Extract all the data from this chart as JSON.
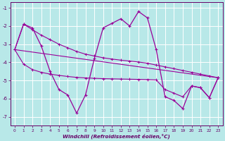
{
  "xlabel": "Windchill (Refroidissement éolien,°C)",
  "x": [
    0,
    1,
    2,
    3,
    4,
    5,
    6,
    7,
    8,
    9,
    10,
    11,
    12,
    13,
    14,
    15,
    16,
    17,
    18,
    19,
    20,
    21,
    22,
    23
  ],
  "main_line": [
    -3.3,
    -1.9,
    -2.1,
    -3.1,
    -4.5,
    -5.5,
    -5.8,
    -6.8,
    -5.8,
    -3.8,
    -2.1,
    -1.85,
    -1.6,
    -2.0,
    -1.2,
    -1.55,
    -3.3,
    -5.9,
    -6.1,
    -6.55,
    -5.3,
    -5.4,
    -5.95,
    -4.85
  ],
  "upper_line": [
    -3.3,
    -1.9,
    -2.2,
    -2.5,
    -2.75,
    -3.0,
    -3.2,
    -3.4,
    -3.55,
    -3.65,
    -3.75,
    -3.82,
    -3.88,
    -3.93,
    -3.98,
    -4.05,
    -4.15,
    -4.25,
    -4.35,
    -4.45,
    -4.55,
    -4.65,
    -4.75,
    -4.85
  ],
  "lower_line": [
    -3.3,
    -4.1,
    -4.4,
    -4.55,
    -4.65,
    -4.72,
    -4.78,
    -4.83,
    -4.86,
    -4.88,
    -4.9,
    -4.91,
    -4.92,
    -4.93,
    -4.94,
    -4.95,
    -4.97,
    -5.5,
    -5.7,
    -5.9,
    -5.3,
    -5.4,
    -5.95,
    -4.85
  ],
  "trend_x": [
    0,
    23
  ],
  "trend_y": [
    -3.3,
    -4.85
  ],
  "line_color": "#990099",
  "bg_color": "#b8e8e8",
  "grid_color": "#ffffff",
  "ylim": [
    -7.5,
    -0.7
  ],
  "yticks": [
    -7,
    -6,
    -5,
    -4,
    -3,
    -2,
    -1
  ],
  "xticks": [
    0,
    1,
    2,
    3,
    4,
    5,
    6,
    7,
    8,
    9,
    10,
    11,
    12,
    13,
    14,
    15,
    16,
    17,
    18,
    19,
    20,
    21,
    22,
    23
  ]
}
